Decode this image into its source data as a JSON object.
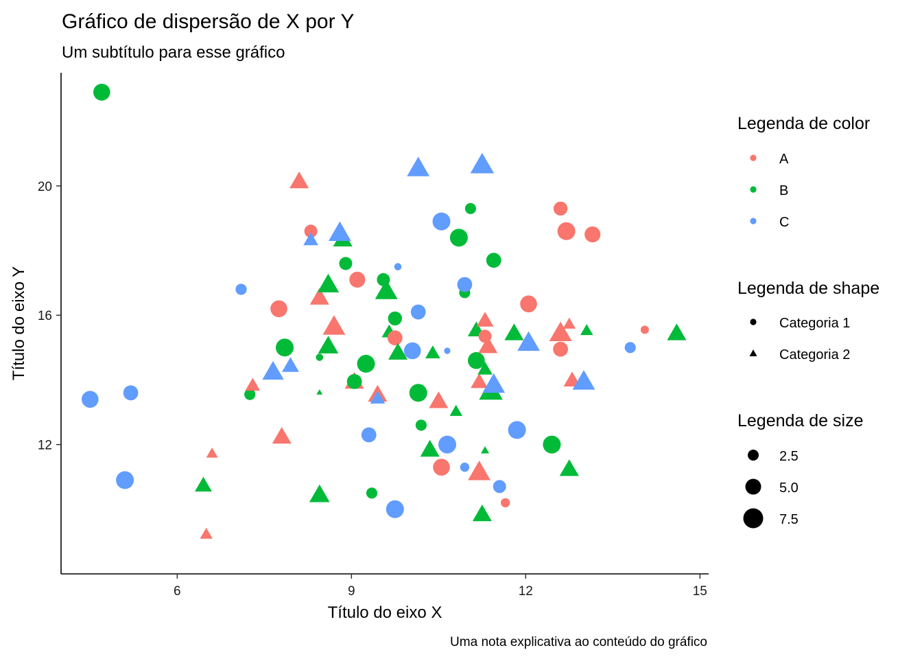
{
  "chart_data": {
    "type": "scatter",
    "title": "Gráfico de dispersão de X por Y",
    "subtitle": "Um subtítulo para esse gráfico",
    "xlabel": "Título do eixo X",
    "ylabel": "Título do eixo Y",
    "caption": "Uma nota explicativa ao conteúdo do gráfico",
    "xlim": [
      4.0,
      15.15
    ],
    "ylim": [
      8.0,
      23.5
    ],
    "xticks": [
      6,
      9,
      12,
      15
    ],
    "yticks": [
      12,
      16,
      20
    ],
    "grid": false,
    "legend_placement": "right",
    "colors": {
      "A": "#F8766D",
      "B": "#00BA38",
      "C": "#619CFF"
    },
    "legend": {
      "color": {
        "title": "Legenda de color",
        "items": [
          "A",
          "B",
          "C"
        ]
      },
      "shape": {
        "title": "Legenda de shape",
        "items": [
          "Categoria 1",
          "Categoria 2"
        ]
      },
      "size": {
        "title": "Legenda de size",
        "items": [
          "2.5",
          "5.0",
          "7.5"
        ],
        "values": [
          2.5,
          5.0,
          7.5
        ]
      }
    },
    "points": [
      {
        "x": 4.7,
        "y": 22.9,
        "color": "B",
        "shape": "Categoria 1",
        "size": 7
      },
      {
        "x": 4.5,
        "y": 13.4,
        "color": "C",
        "shape": "Categoria 1",
        "size": 7
      },
      {
        "x": 5.2,
        "y": 13.6,
        "color": "C",
        "shape": "Categoria 1",
        "size": 6
      },
      {
        "x": 5.1,
        "y": 10.9,
        "color": "C",
        "shape": "Categoria 1",
        "size": 7.5
      },
      {
        "x": 6.5,
        "y": 9.2,
        "color": "A",
        "shape": "Categoria 2",
        "size": 4
      },
      {
        "x": 6.6,
        "y": 11.7,
        "color": "A",
        "shape": "Categoria 2",
        "size": 3.5
      },
      {
        "x": 6.45,
        "y": 10.7,
        "color": "B",
        "shape": "Categoria 2",
        "size": 6
      },
      {
        "x": 7.1,
        "y": 16.8,
        "color": "C",
        "shape": "Categoria 1",
        "size": 4
      },
      {
        "x": 7.25,
        "y": 13.55,
        "color": "B",
        "shape": "Categoria 1",
        "size": 4
      },
      {
        "x": 7.3,
        "y": 13.8,
        "color": "A",
        "shape": "Categoria 2",
        "size": 5
      },
      {
        "x": 7.65,
        "y": 14.2,
        "color": "C",
        "shape": "Categoria 2",
        "size": 8
      },
      {
        "x": 7.95,
        "y": 14.4,
        "color": "C",
        "shape": "Categoria 2",
        "size": 6
      },
      {
        "x": 7.8,
        "y": 12.2,
        "color": "A",
        "shape": "Categoria 2",
        "size": 7
      },
      {
        "x": 7.75,
        "y": 16.2,
        "color": "A",
        "shape": "Categoria 1",
        "size": 7
      },
      {
        "x": 7.85,
        "y": 15.0,
        "color": "B",
        "shape": "Categoria 1",
        "size": 7.5
      },
      {
        "x": 8.1,
        "y": 20.1,
        "color": "A",
        "shape": "Categoria 2",
        "size": 7
      },
      {
        "x": 8.3,
        "y": 18.6,
        "color": "A",
        "shape": "Categoria 1",
        "size": 5
      },
      {
        "x": 8.3,
        "y": 18.3,
        "color": "C",
        "shape": "Categoria 2",
        "size": 5
      },
      {
        "x": 8.45,
        "y": 16.5,
        "color": "A",
        "shape": "Categoria 2",
        "size": 7
      },
      {
        "x": 8.45,
        "y": 14.7,
        "color": "B",
        "shape": "Categoria 1",
        "size": 2
      },
      {
        "x": 8.45,
        "y": 13.6,
        "color": "B",
        "shape": "Categoria 2",
        "size": 1
      },
      {
        "x": 8.45,
        "y": 10.4,
        "color": "B",
        "shape": "Categoria 2",
        "size": 7.5
      },
      {
        "x": 8.6,
        "y": 16.9,
        "color": "B",
        "shape": "Categoria 2",
        "size": 8
      },
      {
        "x": 8.6,
        "y": 15.0,
        "color": "B",
        "shape": "Categoria 2",
        "size": 7.5
      },
      {
        "x": 8.7,
        "y": 15.6,
        "color": "A",
        "shape": "Categoria 2",
        "size": 8.5
      },
      {
        "x": 8.85,
        "y": 18.3,
        "color": "B",
        "shape": "Categoria 2",
        "size": 7
      },
      {
        "x": 8.8,
        "y": 18.5,
        "color": "C",
        "shape": "Categoria 2",
        "size": 8.5
      },
      {
        "x": 8.9,
        "y": 17.6,
        "color": "B",
        "shape": "Categoria 1",
        "size": 5
      },
      {
        "x": 9.05,
        "y": 13.9,
        "color": "A",
        "shape": "Categoria 2",
        "size": 7
      },
      {
        "x": 9.05,
        "y": 13.95,
        "color": "B",
        "shape": "Categoria 1",
        "size": 6
      },
      {
        "x": 9.1,
        "y": 17.1,
        "color": "A",
        "shape": "Categoria 1",
        "size": 6.5
      },
      {
        "x": 9.25,
        "y": 14.5,
        "color": "B",
        "shape": "Categoria 1",
        "size": 7.5
      },
      {
        "x": 9.3,
        "y": 12.3,
        "color": "C",
        "shape": "Categoria 1",
        "size": 6
      },
      {
        "x": 9.35,
        "y": 10.5,
        "color": "B",
        "shape": "Categoria 1",
        "size": 4
      },
      {
        "x": 9.45,
        "y": 13.5,
        "color": "A",
        "shape": "Categoria 2",
        "size": 7
      },
      {
        "x": 9.45,
        "y": 13.4,
        "color": "C",
        "shape": "Categoria 2",
        "size": 5
      },
      {
        "x": 9.55,
        "y": 17.1,
        "color": "B",
        "shape": "Categoria 1",
        "size": 5
      },
      {
        "x": 9.6,
        "y": 16.7,
        "color": "B",
        "shape": "Categoria 2",
        "size": 8.5
      },
      {
        "x": 9.65,
        "y": 15.45,
        "color": "B",
        "shape": "Categoria 2",
        "size": 5
      },
      {
        "x": 9.75,
        "y": 15.9,
        "color": "B",
        "shape": "Categoria 1",
        "size": 5.5
      },
      {
        "x": 9.75,
        "y": 15.3,
        "color": "A",
        "shape": "Categoria 1",
        "size": 6
      },
      {
        "x": 9.8,
        "y": 14.8,
        "color": "B",
        "shape": "Categoria 2",
        "size": 7
      },
      {
        "x": 9.75,
        "y": 10.0,
        "color": "C",
        "shape": "Categoria 1",
        "size": 7.5
      },
      {
        "x": 9.8,
        "y": 17.5,
        "color": "C",
        "shape": "Categoria 1",
        "size": 2
      },
      {
        "x": 10.05,
        "y": 14.9,
        "color": "C",
        "shape": "Categoria 1",
        "size": 7
      },
      {
        "x": 10.15,
        "y": 16.1,
        "color": "C",
        "shape": "Categoria 1",
        "size": 6
      },
      {
        "x": 10.15,
        "y": 13.6,
        "color": "B",
        "shape": "Categoria 1",
        "size": 7.5
      },
      {
        "x": 10.2,
        "y": 12.6,
        "color": "B",
        "shape": "Categoria 1",
        "size": 4
      },
      {
        "x": 10.15,
        "y": 20.5,
        "color": "C",
        "shape": "Categoria 2",
        "size": 8.5
      },
      {
        "x": 10.35,
        "y": 11.8,
        "color": "B",
        "shape": "Categoria 2",
        "size": 7
      },
      {
        "x": 10.4,
        "y": 14.8,
        "color": "B",
        "shape": "Categoria 2",
        "size": 5
      },
      {
        "x": 10.5,
        "y": 13.3,
        "color": "A",
        "shape": "Categoria 2",
        "size": 7
      },
      {
        "x": 10.55,
        "y": 11.3,
        "color": "A",
        "shape": "Categoria 1",
        "size": 7
      },
      {
        "x": 10.55,
        "y": 18.9,
        "color": "C",
        "shape": "Categoria 1",
        "size": 7.5
      },
      {
        "x": 10.65,
        "y": 14.9,
        "color": "C",
        "shape": "Categoria 1",
        "size": 1.5
      },
      {
        "x": 10.65,
        "y": 12.0,
        "color": "C",
        "shape": "Categoria 1",
        "size": 7.5
      },
      {
        "x": 10.8,
        "y": 13.0,
        "color": "B",
        "shape": "Categoria 2",
        "size": 4
      },
      {
        "x": 10.85,
        "y": 18.4,
        "color": "B",
        "shape": "Categoria 1",
        "size": 7.5
      },
      {
        "x": 10.95,
        "y": 11.3,
        "color": "C",
        "shape": "Categoria 1",
        "size": 3
      },
      {
        "x": 10.95,
        "y": 16.7,
        "color": "B",
        "shape": "Categoria 1",
        "size": 4
      },
      {
        "x": 10.95,
        "y": 16.95,
        "color": "C",
        "shape": "Categoria 1",
        "size": 6
      },
      {
        "x": 11.05,
        "y": 19.3,
        "color": "B",
        "shape": "Categoria 1",
        "size": 4
      },
      {
        "x": 11.15,
        "y": 15.5,
        "color": "B",
        "shape": "Categoria 2",
        "size": 6
      },
      {
        "x": 11.15,
        "y": 14.6,
        "color": "B",
        "shape": "Categoria 1",
        "size": 7
      },
      {
        "x": 11.2,
        "y": 13.9,
        "color": "A",
        "shape": "Categoria 2",
        "size": 6
      },
      {
        "x": 11.2,
        "y": 11.1,
        "color": "A",
        "shape": "Categoria 2",
        "size": 8.5
      },
      {
        "x": 11.25,
        "y": 9.8,
        "color": "B",
        "shape": "Categoria 2",
        "size": 7
      },
      {
        "x": 11.25,
        "y": 20.6,
        "color": "C",
        "shape": "Categoria 2",
        "size": 9
      },
      {
        "x": 11.3,
        "y": 15.8,
        "color": "A",
        "shape": "Categoria 2",
        "size": 6
      },
      {
        "x": 11.3,
        "y": 15.35,
        "color": "A",
        "shape": "Categoria 1",
        "size": 5
      },
      {
        "x": 11.35,
        "y": 15.0,
        "color": "A",
        "shape": "Categoria 2",
        "size": 7
      },
      {
        "x": 11.3,
        "y": 14.3,
        "color": "B",
        "shape": "Categoria 2",
        "size": 5
      },
      {
        "x": 11.3,
        "y": 11.8,
        "color": "B",
        "shape": "Categoria 2",
        "size": 2
      },
      {
        "x": 11.4,
        "y": 13.6,
        "color": "B",
        "shape": "Categoria 2",
        "size": 9
      },
      {
        "x": 11.45,
        "y": 13.8,
        "color": "C",
        "shape": "Categoria 2",
        "size": 8.5
      },
      {
        "x": 11.45,
        "y": 17.7,
        "color": "B",
        "shape": "Categoria 1",
        "size": 6
      },
      {
        "x": 11.55,
        "y": 10.7,
        "color": "C",
        "shape": "Categoria 1",
        "size": 5
      },
      {
        "x": 11.65,
        "y": 10.2,
        "color": "A",
        "shape": "Categoria 1",
        "size": 3
      },
      {
        "x": 11.8,
        "y": 15.4,
        "color": "B",
        "shape": "Categoria 2",
        "size": 7
      },
      {
        "x": 11.85,
        "y": 12.45,
        "color": "C",
        "shape": "Categoria 1",
        "size": 7.5
      },
      {
        "x": 12.05,
        "y": 16.35,
        "color": "A",
        "shape": "Categoria 1",
        "size": 7
      },
      {
        "x": 12.05,
        "y": 15.1,
        "color": "C",
        "shape": "Categoria 2",
        "size": 8.5
      },
      {
        "x": 12.45,
        "y": 12.0,
        "color": "B",
        "shape": "Categoria 1",
        "size": 7.5
      },
      {
        "x": 12.6,
        "y": 19.3,
        "color": "A",
        "shape": "Categoria 1",
        "size": 5.5
      },
      {
        "x": 12.6,
        "y": 15.4,
        "color": "A",
        "shape": "Categoria 2",
        "size": 8.5
      },
      {
        "x": 12.6,
        "y": 14.95,
        "color": "A",
        "shape": "Categoria 1",
        "size": 6
      },
      {
        "x": 12.7,
        "y": 18.6,
        "color": "A",
        "shape": "Categoria 1",
        "size": 7.5
      },
      {
        "x": 12.75,
        "y": 15.7,
        "color": "A",
        "shape": "Categoria 2",
        "size": 4
      },
      {
        "x": 12.75,
        "y": 11.2,
        "color": "B",
        "shape": "Categoria 2",
        "size": 7
      },
      {
        "x": 12.8,
        "y": 13.95,
        "color": "A",
        "shape": "Categoria 2",
        "size": 6
      },
      {
        "x": 13.0,
        "y": 13.9,
        "color": "C",
        "shape": "Categoria 2",
        "size": 8.5
      },
      {
        "x": 13.05,
        "y": 15.5,
        "color": "B",
        "shape": "Categoria 2",
        "size": 4
      },
      {
        "x": 13.15,
        "y": 18.5,
        "color": "A",
        "shape": "Categoria 1",
        "size": 6.5
      },
      {
        "x": 13.8,
        "y": 15.0,
        "color": "C",
        "shape": "Categoria 1",
        "size": 4
      },
      {
        "x": 14.05,
        "y": 15.55,
        "color": "A",
        "shape": "Categoria 1",
        "size": 2.5
      },
      {
        "x": 14.6,
        "y": 15.4,
        "color": "B",
        "shape": "Categoria 2",
        "size": 7
      }
    ]
  }
}
